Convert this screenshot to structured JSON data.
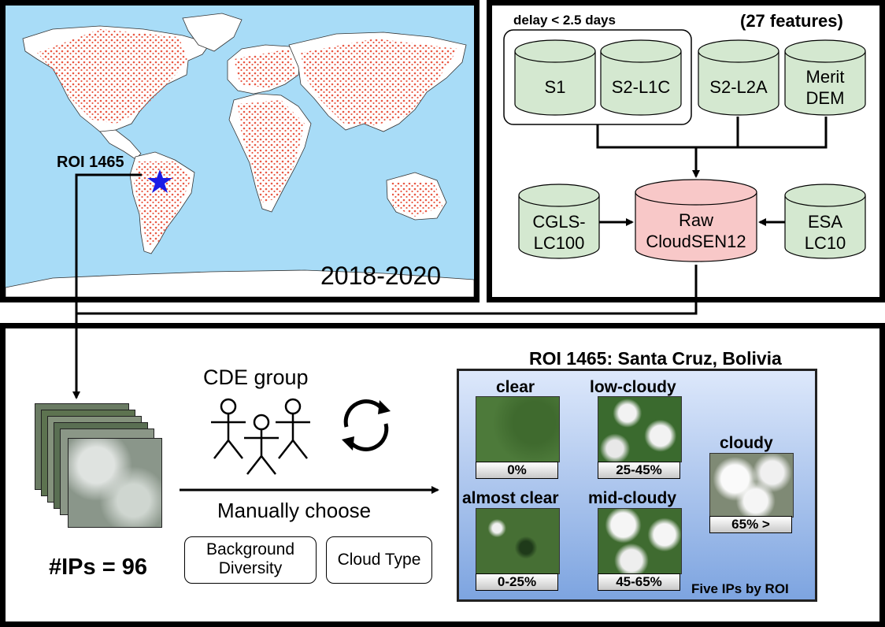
{
  "map": {
    "roi_label": "ROI 1465",
    "period": "2018-2020"
  },
  "sources": {
    "delay_label": "delay < 2.5 days",
    "features_label": "(27 features)",
    "s1": "S1",
    "s2l1c": "S2-L1C",
    "s2l2a": "S2-L2A",
    "merit_line1": "Merit",
    "merit_line2": "DEM",
    "cgls_line1": "CGLS-",
    "cgls_line2": "LC100",
    "raw_line1": "Raw",
    "raw_line2": "CloudSEN12",
    "esa_line1": "ESA",
    "esa_line2": "LC10"
  },
  "workflow": {
    "cde_group": "CDE group",
    "manually_choose": "Manually choose",
    "ips_count": "#IPs = 96",
    "bg_line1": "Background",
    "bg_line2": "Diversity",
    "cloud_type": "Cloud Type"
  },
  "roi_panel": {
    "title": "ROI 1465: Santa Cruz, Bolivia",
    "footer": "Five IPs by ROI",
    "categories": [
      {
        "label": "clear",
        "pct": "0%"
      },
      {
        "label": "low-cloudy",
        "pct": "25-45%"
      },
      {
        "label": "almost clear",
        "pct": "0-25%"
      },
      {
        "label": "mid-cloudy",
        "pct": "45-65%"
      },
      {
        "label": "cloudy",
        "pct": "65% >"
      }
    ]
  },
  "colors": {
    "ocean": "#a8dcf7",
    "land": "#ffffff",
    "points": "#e8503a",
    "cylinder_green": "#d4e8d0",
    "cylinder_red": "#f8c8c8",
    "star": "#1a1ae6",
    "roi_bg_top": "#dde8fb",
    "roi_bg_bottom": "#7da4e0"
  }
}
